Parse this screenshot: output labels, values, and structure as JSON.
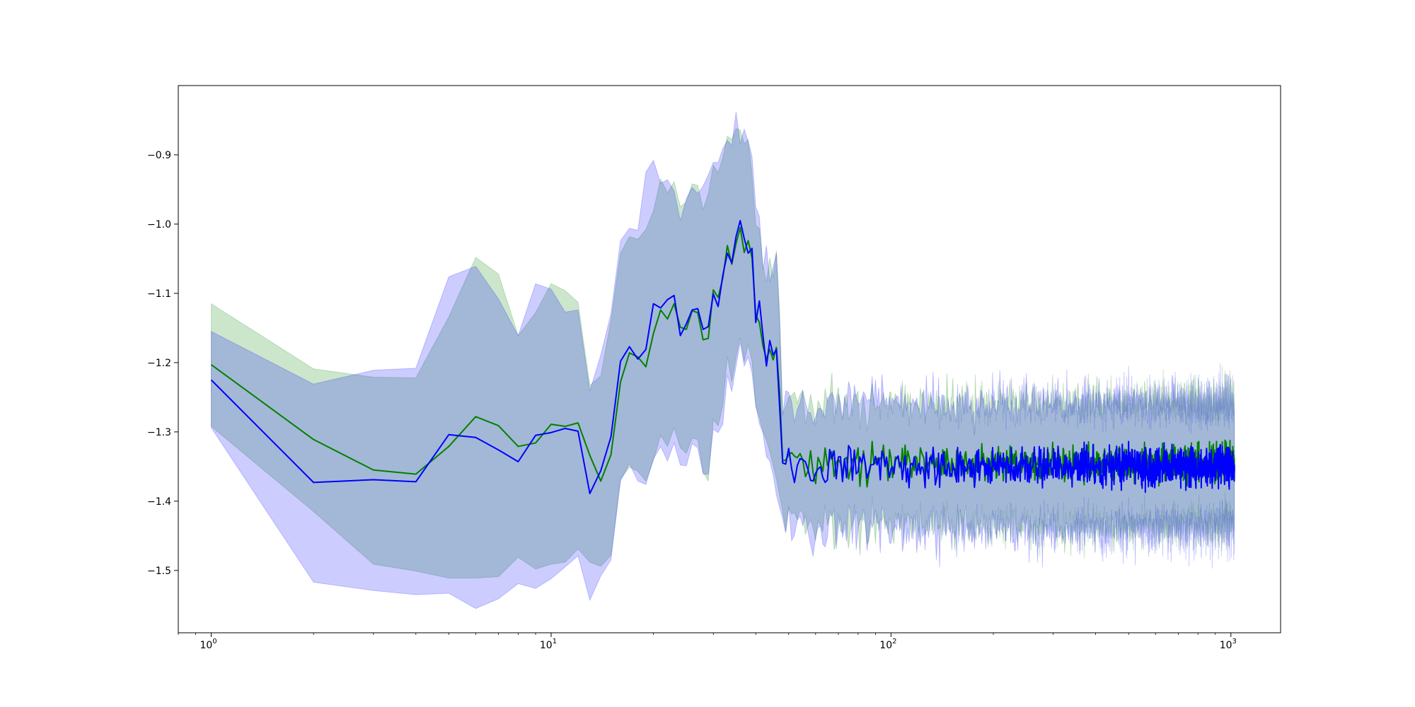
{
  "chart_data": {
    "type": "line",
    "title": "",
    "xlabel": "",
    "ylabel": "",
    "xscale": "log",
    "xlim": [
      0.8,
      1400
    ],
    "ylim": [
      -1.59,
      -0.8
    ],
    "grid": false,
    "x_ticks": [
      {
        "value": 1,
        "base": "10",
        "exp": "0"
      },
      {
        "value": 10,
        "base": "10",
        "exp": "1"
      },
      {
        "value": 100,
        "base": "10",
        "exp": "2"
      },
      {
        "value": 1000,
        "base": "10",
        "exp": "3"
      }
    ],
    "y_ticks": [
      {
        "value": -0.9,
        "label": "−0.9"
      },
      {
        "value": -1.0,
        "label": "−1.0"
      },
      {
        "value": -1.1,
        "label": "−1.1"
      },
      {
        "value": -1.2,
        "label": "−1.2"
      },
      {
        "value": -1.3,
        "label": "−1.3"
      },
      {
        "value": -1.4,
        "label": "−1.4"
      },
      {
        "value": -1.5,
        "label": "−1.5"
      }
    ],
    "series": [
      {
        "color": "#008000",
        "band_color": "#008000",
        "band_opacity": 0.2,
        "x": [
          1,
          2,
          3,
          4,
          5,
          6,
          7,
          8,
          9,
          10,
          11,
          12,
          13,
          14,
          15,
          16,
          17,
          18,
          19,
          20,
          21,
          22,
          23,
          24,
          25,
          26,
          27,
          28,
          29,
          30,
          31,
          32,
          33,
          34,
          35,
          36,
          37,
          38,
          39,
          40,
          41,
          42,
          43,
          44,
          45,
          46,
          47,
          48
        ],
        "y": [
          -1.203,
          -1.311,
          -1.355,
          -1.361,
          -1.321,
          -1.278,
          -1.291,
          -1.321,
          -1.316,
          -1.289,
          -1.292,
          -1.287,
          -1.334,
          -1.371,
          -1.333,
          -1.228,
          -1.186,
          -1.192,
          -1.206,
          -1.158,
          -1.124,
          -1.137,
          -1.115,
          -1.149,
          -1.152,
          -1.125,
          -1.128,
          -1.167,
          -1.165,
          -1.095,
          -1.106,
          -1.078,
          -1.031,
          -1.058,
          -1.028,
          -1.005,
          -1.041,
          -1.024,
          -1.049,
          -1.131,
          -1.142,
          -1.176,
          -1.195,
          -1.181,
          -1.196,
          -1.178,
          -1.243,
          -1.342
        ],
        "y_upper": [
          -1.115,
          -1.209,
          -1.221,
          -1.222,
          -1.134,
          -1.048,
          -1.072,
          -1.161,
          -1.128,
          -1.086,
          -1.096,
          -1.113,
          -1.233,
          -1.219,
          -1.139,
          -1.042,
          -1.018,
          -1.022,
          -1.008,
          -0.981,
          -0.935,
          -0.955,
          -0.939,
          -0.975,
          -0.968,
          -0.942,
          -0.944,
          -0.979,
          -0.956,
          -0.915,
          -0.926,
          -0.904,
          -0.873,
          -0.878,
          -0.862,
          -0.864,
          -0.884,
          -0.878,
          -0.928,
          -1.002,
          -1.006,
          -1.061,
          -1.084,
          -1.049,
          -1.078,
          -1.038,
          -1.124,
          -1.273
        ],
        "y_lower": [
          -1.292,
          -1.415,
          -1.491,
          -1.501,
          -1.511,
          -1.511,
          -1.509,
          -1.481,
          -1.498,
          -1.491,
          -1.488,
          -1.469,
          -1.488,
          -1.494,
          -1.478,
          -1.368,
          -1.351,
          -1.357,
          -1.371,
          -1.341,
          -1.305,
          -1.321,
          -1.294,
          -1.323,
          -1.331,
          -1.309,
          -1.311,
          -1.358,
          -1.371,
          -1.282,
          -1.291,
          -1.262,
          -1.191,
          -1.228,
          -1.192,
          -1.164,
          -1.199,
          -1.174,
          -1.198,
          -1.263,
          -1.279,
          -1.299,
          -1.312,
          -1.329,
          -1.348,
          -1.368,
          -1.392,
          -1.415
        ],
        "noise_tail": {
          "x_start": 48,
          "x_end": 1024,
          "mean": -1.345,
          "spread": 0.022,
          "band_half_width": 0.075,
          "band_spread": 0.03
        }
      },
      {
        "color": "#0000ff",
        "band_color": "#0000ff",
        "band_opacity": 0.2,
        "x": [
          1,
          2,
          3,
          4,
          5,
          6,
          7,
          8,
          9,
          10,
          11,
          12,
          13,
          14,
          15,
          16,
          17,
          18,
          19,
          20,
          21,
          22,
          23,
          24,
          25,
          26,
          27,
          28,
          29,
          30,
          31,
          32,
          33,
          34,
          35,
          36,
          37,
          38,
          39,
          40,
          41,
          42,
          43,
          44,
          45,
          46,
          47,
          48
        ],
        "y": [
          -1.225,
          -1.373,
          -1.369,
          -1.372,
          -1.304,
          -1.308,
          -1.326,
          -1.343,
          -1.305,
          -1.301,
          -1.295,
          -1.299,
          -1.389,
          -1.356,
          -1.307,
          -1.198,
          -1.177,
          -1.195,
          -1.181,
          -1.115,
          -1.121,
          -1.109,
          -1.103,
          -1.161,
          -1.144,
          -1.124,
          -1.122,
          -1.152,
          -1.148,
          -1.101,
          -1.119,
          -1.074,
          -1.042,
          -1.056,
          -1.018,
          -0.995,
          -1.021,
          -1.042,
          -1.035,
          -1.142,
          -1.111,
          -1.161,
          -1.205,
          -1.168,
          -1.189,
          -1.181,
          -1.262,
          -1.345
        ],
        "y_upper": [
          -1.155,
          -1.231,
          -1.211,
          -1.208,
          -1.076,
          -1.061,
          -1.108,
          -1.161,
          -1.086,
          -1.094,
          -1.127,
          -1.124,
          -1.241,
          -1.189,
          -1.129,
          -1.024,
          -1.006,
          -1.009,
          -0.925,
          -0.908,
          -0.941,
          -0.936,
          -0.952,
          -0.995,
          -0.963,
          -0.947,
          -0.956,
          -0.945,
          -0.929,
          -0.911,
          -0.911,
          -0.891,
          -0.879,
          -0.887,
          -0.838,
          -0.884,
          -0.863,
          -0.881,
          -0.902,
          -0.975,
          -0.989,
          -1.066,
          -1.031,
          -1.084,
          -1.062,
          -1.042,
          -1.139,
          -1.277
        ],
        "y_lower": [
          -1.294,
          -1.517,
          -1.529,
          -1.535,
          -1.533,
          -1.555,
          -1.541,
          -1.519,
          -1.526,
          -1.512,
          -1.495,
          -1.479,
          -1.543,
          -1.508,
          -1.485,
          -1.371,
          -1.346,
          -1.371,
          -1.376,
          -1.339,
          -1.321,
          -1.342,
          -1.316,
          -1.348,
          -1.349,
          -1.317,
          -1.323,
          -1.361,
          -1.361,
          -1.296,
          -1.301,
          -1.289,
          -1.218,
          -1.242,
          -1.205,
          -1.171,
          -1.205,
          -1.192,
          -1.215,
          -1.262,
          -1.288,
          -1.302,
          -1.336,
          -1.342,
          -1.362,
          -1.391,
          -1.409,
          -1.425
        ],
        "noise_tail": {
          "x_start": 48,
          "x_end": 1024,
          "mean": -1.35,
          "spread": 0.024,
          "band_half_width": 0.075,
          "band_spread": 0.035
        }
      }
    ]
  }
}
